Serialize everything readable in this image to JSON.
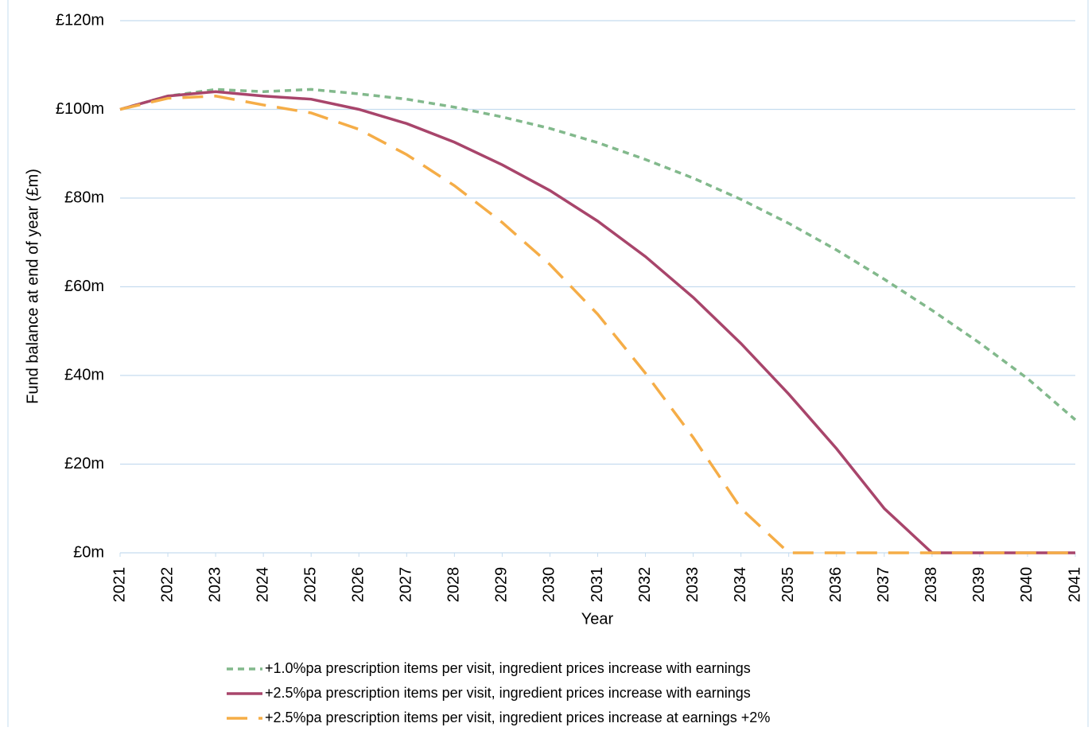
{
  "chart_data": {
    "type": "line",
    "x_label": "Year",
    "y_label": "Fund balance at end of year (£m)",
    "x": [
      2021,
      2022,
      2023,
      2024,
      2025,
      2026,
      2027,
      2028,
      2029,
      2030,
      2031,
      2032,
      2033,
      2034,
      2035,
      2036,
      2037,
      2038,
      2039,
      2040,
      2041
    ],
    "xlim": [
      2021,
      2041
    ],
    "xticks": [
      2021,
      2022,
      2023,
      2024,
      2025,
      2026,
      2027,
      2028,
      2029,
      2030,
      2031,
      2032,
      2033,
      2034,
      2035,
      2036,
      2037,
      2038,
      2039,
      2040,
      2041
    ],
    "ylim": [
      0,
      120
    ],
    "yticks": [
      {
        "value": 0,
        "label": "£0m"
      },
      {
        "value": 20,
        "label": "£20m"
      },
      {
        "value": 40,
        "label": "£40m"
      },
      {
        "value": 60,
        "label": "£60m"
      },
      {
        "value": 80,
        "label": "£80m"
      },
      {
        "value": 100,
        "label": "£100m"
      },
      {
        "value": 120,
        "label": "£120m"
      }
    ],
    "grid": true,
    "legend": "bottom",
    "series": [
      {
        "name": "+1.0%pa prescription items per visit, ingredient prices increase with earnings",
        "color": "#82b98c",
        "dash": "dotted",
        "values": [
          100,
          103,
          104.5,
          104,
          104.5,
          103.5,
          102.3,
          100.5,
          98.3,
          95.7,
          92.5,
          88.7,
          84.5,
          79.7,
          74.3,
          68.3,
          61.7,
          54.7,
          47.3,
          39.3,
          30
        ]
      },
      {
        "name": "+2.5%pa prescription items per visit, ingredient prices increase with earnings",
        "color": "#a8456b",
        "dash": "solid",
        "values": [
          100,
          103,
          104,
          103,
          102.3,
          100,
          96.8,
          92.6,
          87.5,
          81.7,
          74.8,
          66.8,
          57.6,
          47.2,
          35.8,
          23.5,
          10,
          0,
          0,
          0,
          0
        ]
      },
      {
        "name": "+2.5%pa prescription items per visit, ingredient prices increase at earnings +2%",
        "color": "#f5ad47",
        "dash": "dashed",
        "values": [
          100,
          102.5,
          103,
          101,
          99.2,
          95.5,
          89.8,
          82.8,
          74.5,
          65,
          53.8,
          40.5,
          26,
          10,
          0,
          0,
          0,
          0,
          0,
          0,
          0
        ]
      }
    ]
  }
}
